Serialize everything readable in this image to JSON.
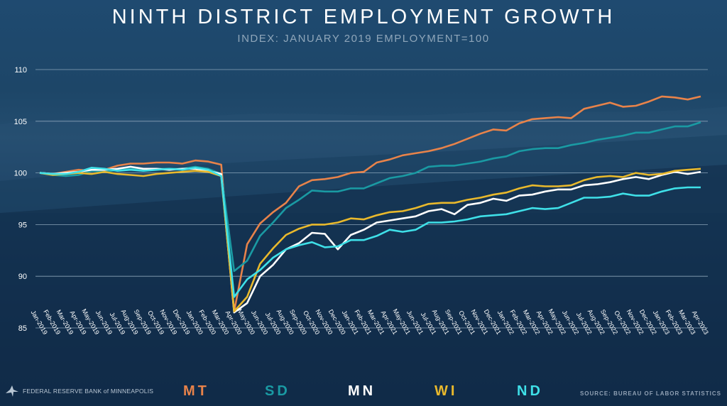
{
  "title": "NINTH DISTRICT EMPLOYMENT GROWTH",
  "subtitle": "INDEX: JANUARY 2019 EMPLOYMENT=100",
  "logo_text": "FEDERAL RESERVE BANK of MINNEAPOLIS",
  "source": "SOURCE: BUREAU OF LABOR STATISTICS",
  "colors": {
    "MT": "#e8834a",
    "SD": "#1a9aa3",
    "MN": "#ffffff",
    "WI": "#e9b92c",
    "ND": "#3fe0e8",
    "grid": "#8aa3b8"
  },
  "chart_data": {
    "type": "line",
    "title": "NINTH DISTRICT EMPLOYMENT GROWTH",
    "subtitle": "INDEX: JANUARY 2019 EMPLOYMENT=100",
    "xlabel": "",
    "ylabel": "",
    "ylim": [
      85,
      110
    ],
    "yticks": [
      85,
      90,
      95,
      100,
      105,
      110
    ],
    "grid": true,
    "legend_position": "bottom",
    "x": [
      "Jan-2019",
      "Feb-2019",
      "Mar-2019",
      "Apr-2019",
      "May-2019",
      "Jun-2019",
      "Jul-2019",
      "Aug-2019",
      "Sep-2019",
      "Oct-2019",
      "Nov-2019",
      "Dec-2019",
      "Jan-2020",
      "Feb-2020",
      "Mar-2020",
      "Apr-2020",
      "May-2020",
      "Jun-2020",
      "Jul-2020",
      "Aug-2020",
      "Sep-2020",
      "Oct-2020",
      "Nov-2020",
      "Dec-2020",
      "Jan-2021",
      "Feb-2021",
      "Mar-2021",
      "Apr-2021",
      "May-2021",
      "Jun-2021",
      "Jul-2021",
      "Aug-2021",
      "Sep-2021",
      "Oct-2021",
      "Nov-2021",
      "Dec-2021",
      "Jan-2022",
      "Feb-2022",
      "Mar-2022",
      "Apr-2022",
      "May-2022",
      "Jun-2022",
      "Jul-2022",
      "Aug-2022",
      "Sep-2022",
      "Oct-2022",
      "Nov-2022",
      "Dec-2022",
      "Jan-2023",
      "Feb-2023",
      "Mar-2023",
      "Apr-2023"
    ],
    "series": [
      {
        "name": "MT",
        "values": [
          100,
          99.9,
          100.1,
          100.3,
          100.2,
          100.3,
          100.7,
          100.9,
          100.9,
          101.0,
          101.0,
          100.9,
          101.2,
          101.1,
          100.8,
          86.6,
          93.1,
          95.1,
          96.2,
          97.1,
          98.7,
          99.3,
          99.4,
          99.6,
          100.0,
          100.1,
          101.0,
          101.3,
          101.7,
          101.9,
          102.1,
          102.4,
          102.8,
          103.3,
          103.8,
          104.2,
          104.1,
          104.8,
          105.2,
          105.3,
          105.4,
          105.3,
          106.2,
          106.5,
          106.8,
          106.4,
          106.5,
          106.9,
          107.4,
          107.3,
          107.1,
          107.4
        ]
      },
      {
        "name": "SD",
        "values": [
          100,
          99.8,
          99.7,
          99.8,
          100.2,
          100.1,
          100.3,
          100.4,
          100.3,
          100.4,
          100.4,
          100.4,
          100.6,
          100.4,
          99.9,
          90.5,
          91.5,
          93.9,
          95.2,
          96.6,
          97.4,
          98.3,
          98.2,
          98.2,
          98.5,
          98.5,
          99.0,
          99.5,
          99.7,
          100.0,
          100.6,
          100.7,
          100.7,
          100.9,
          101.1,
          101.4,
          101.6,
          102.1,
          102.3,
          102.4,
          102.4,
          102.7,
          102.9,
          103.2,
          103.4,
          103.6,
          103.9,
          103.9,
          104.2,
          104.5,
          104.5,
          104.9
        ]
      },
      {
        "name": "MN",
        "values": [
          100,
          99.9,
          100.0,
          100.1,
          100.3,
          100.3,
          100.4,
          100.6,
          100.4,
          100.4,
          100.3,
          100.4,
          100.4,
          100.2,
          99.9,
          86.5,
          87.4,
          90.0,
          91.1,
          92.6,
          93.2,
          94.2,
          94.1,
          92.6,
          94.0,
          94.5,
          95.2,
          95.4,
          95.6,
          95.8,
          96.3,
          96.5,
          96.0,
          96.9,
          97.1,
          97.5,
          97.3,
          97.8,
          97.9,
          98.2,
          98.4,
          98.4,
          98.8,
          98.9,
          99.1,
          99.4,
          99.6,
          99.4,
          99.8,
          100.1,
          99.9,
          100.1
        ]
      },
      {
        "name": "WI",
        "values": [
          100,
          99.8,
          99.9,
          100.0,
          99.9,
          100.1,
          99.9,
          99.8,
          99.7,
          99.9,
          100.0,
          100.1,
          100.2,
          100.1,
          99.7,
          86.6,
          88.0,
          91.2,
          92.7,
          94.0,
          94.6,
          95.0,
          95.0,
          95.2,
          95.6,
          95.5,
          95.9,
          96.2,
          96.3,
          96.6,
          97.0,
          97.1,
          97.1,
          97.4,
          97.6,
          97.9,
          98.1,
          98.5,
          98.8,
          98.7,
          98.7,
          98.8,
          99.3,
          99.6,
          99.7,
          99.6,
          100.0,
          99.8,
          99.9,
          100.2,
          100.3,
          100.4
        ]
      },
      {
        "name": "ND",
        "values": [
          100,
          99.9,
          99.9,
          100.1,
          100.5,
          100.4,
          100.2,
          100.3,
          100.2,
          100.3,
          100.4,
          100.3,
          100.5,
          100.3,
          99.7,
          88.0,
          89.7,
          90.6,
          91.8,
          92.6,
          93.0,
          93.3,
          92.8,
          92.9,
          93.5,
          93.5,
          93.9,
          94.5,
          94.3,
          94.5,
          95.2,
          95.2,
          95.3,
          95.5,
          95.8,
          95.9,
          96.0,
          96.3,
          96.6,
          96.5,
          96.6,
          97.1,
          97.6,
          97.6,
          97.7,
          98.0,
          97.8,
          97.8,
          98.2,
          98.5,
          98.6,
          98.6
        ]
      }
    ]
  }
}
